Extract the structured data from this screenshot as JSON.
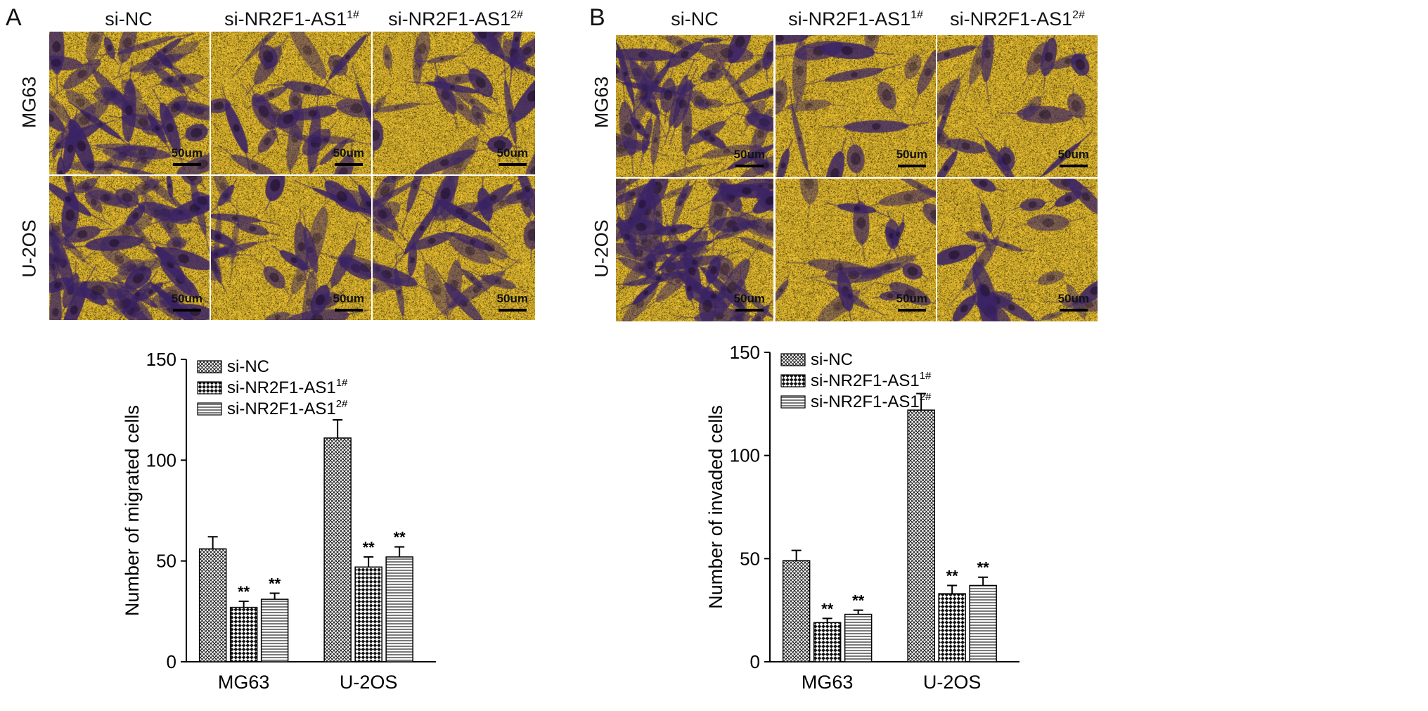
{
  "panels": [
    {
      "letter": "A",
      "columns": [
        {
          "text": "si-NC",
          "sup": ""
        },
        {
          "text": "si-NR2F1-AS1",
          "sup": "1#"
        },
        {
          "text": "si-NR2F1-AS1",
          "sup": "2#"
        }
      ],
      "rows": [
        "MG63",
        "U-2OS"
      ],
      "scale_bar_text": "50um",
      "colors": {
        "background": "#c9a52e",
        "cell": "#3b2466"
      }
    },
    {
      "letter": "B",
      "columns": [
        {
          "text": "si-NC",
          "sup": ""
        },
        {
          "text": "si-NR2F1-AS1",
          "sup": "1#"
        },
        {
          "text": "si-NR2F1-AS1",
          "sup": "2#"
        }
      ],
      "rows": [
        "MG63",
        "U-2OS"
      ],
      "scale_bar_text": "50um",
      "colors": {
        "background": "#c9a52e",
        "cell": "#3b2466"
      }
    }
  ],
  "chart_data": [
    {
      "type": "bar",
      "ylabel": "Number of migrated cells",
      "categories": [
        "MG63",
        "U-2OS"
      ],
      "series": [
        {
          "name": "si-NC",
          "name_sup": "",
          "pattern": "crosshatch-fine",
          "values": [
            56,
            111
          ],
          "errors": [
            6,
            9
          ],
          "sig": [
            "",
            ""
          ]
        },
        {
          "name": "si-NR2F1-AS1",
          "name_sup": "1#",
          "pattern": "checker",
          "values": [
            27,
            47
          ],
          "errors": [
            3,
            5
          ],
          "sig": [
            "**",
            "**"
          ]
        },
        {
          "name": "si-NR2F1-AS1",
          "name_sup": "2#",
          "pattern": "horizontal-lines",
          "values": [
            31,
            52
          ],
          "errors": [
            3,
            5
          ],
          "sig": [
            "**",
            "**"
          ]
        }
      ],
      "ylim": [
        0,
        150
      ],
      "yticks": [
        0,
        50,
        100,
        150
      ],
      "legend": "top-left"
    },
    {
      "type": "bar",
      "ylabel": "Number of invaded cells",
      "categories": [
        "MG63",
        "U-2OS"
      ],
      "series": [
        {
          "name": "si-NC",
          "name_sup": "",
          "pattern": "crosshatch-fine",
          "values": [
            49,
            122
          ],
          "errors": [
            5,
            8
          ],
          "sig": [
            "",
            ""
          ]
        },
        {
          "name": "si-NR2F1-AS1",
          "name_sup": "1#",
          "pattern": "checker",
          "values": [
            19,
            33
          ],
          "errors": [
            2,
            4
          ],
          "sig": [
            "**",
            "**"
          ]
        },
        {
          "name": "si-NR2F1-AS1",
          "name_sup": "2#",
          "pattern": "horizontal-lines",
          "values": [
            23,
            37
          ],
          "errors": [
            2,
            4
          ],
          "sig": [
            "**",
            "**"
          ]
        }
      ],
      "ylim": [
        0,
        150
      ],
      "yticks": [
        0,
        50,
        100,
        150
      ],
      "legend": "top-left"
    }
  ]
}
